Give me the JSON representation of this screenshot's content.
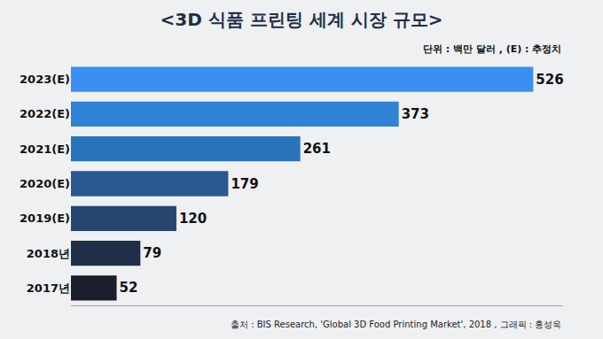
{
  "chart_data": {
    "type": "bar",
    "orientation": "horizontal",
    "title": "<3D 식품 프린팅 세계 시장 규모>",
    "subtitle": "단위 : 백만 달러 , (E) : 추정치",
    "annotations": [
      "출처 : BIS Research, 'Global 3D Food Printing Market', 2018 , 그래픽 : 홍성욱"
    ],
    "categories": [
      "2023(E)",
      "2022(E)",
      "2021(E)",
      "2020(E)",
      "2019(E)",
      "2018년",
      "2017년"
    ],
    "values": [
      526,
      373,
      261,
      179,
      120,
      79,
      52
    ],
    "colors": [
      "#3b8ff2",
      "#2e83d6",
      "#2a74bb",
      "#28588f",
      "#244670",
      "#1f2f48",
      "#1a1f2c"
    ],
    "xlim": [
      0,
      560
    ],
    "xticks": [],
    "data_labels": true,
    "tick_labels": "y",
    "grid": false
  }
}
